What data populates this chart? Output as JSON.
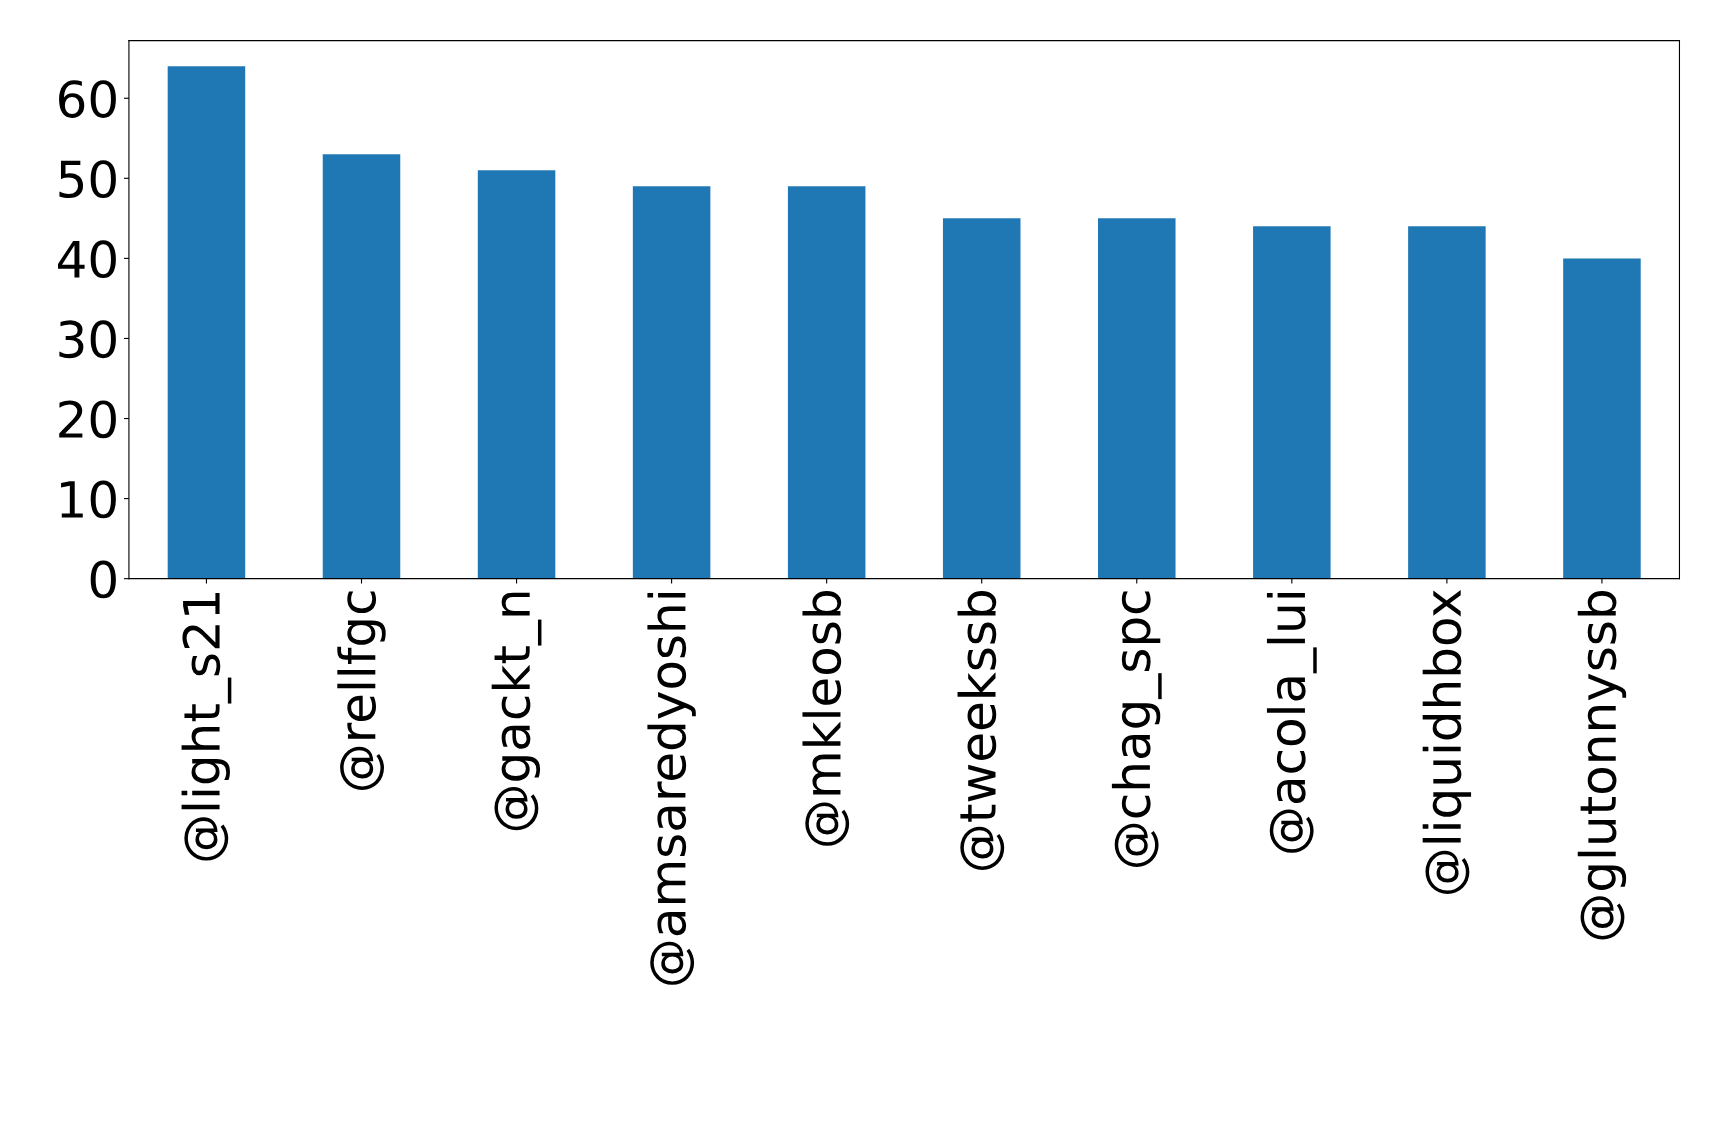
{
  "chart_data": {
    "type": "bar",
    "categories": [
      "@light_s21",
      "@rellfgc",
      "@gackt_n",
      "@amsaredyoshi",
      "@mkleosb",
      "@tweekssb",
      "@chag_spc",
      "@acola_lui",
      "@liquidhbox",
      "@glutonnyssb"
    ],
    "values": [
      64,
      53,
      51,
      49,
      49,
      45,
      45,
      44,
      44,
      40
    ],
    "color": "#1f77b4",
    "ylim": [
      0,
      67.2
    ],
    "yticks": [
      0,
      10,
      20,
      30,
      40,
      50,
      60
    ],
    "grid": false,
    "legend": false
  }
}
